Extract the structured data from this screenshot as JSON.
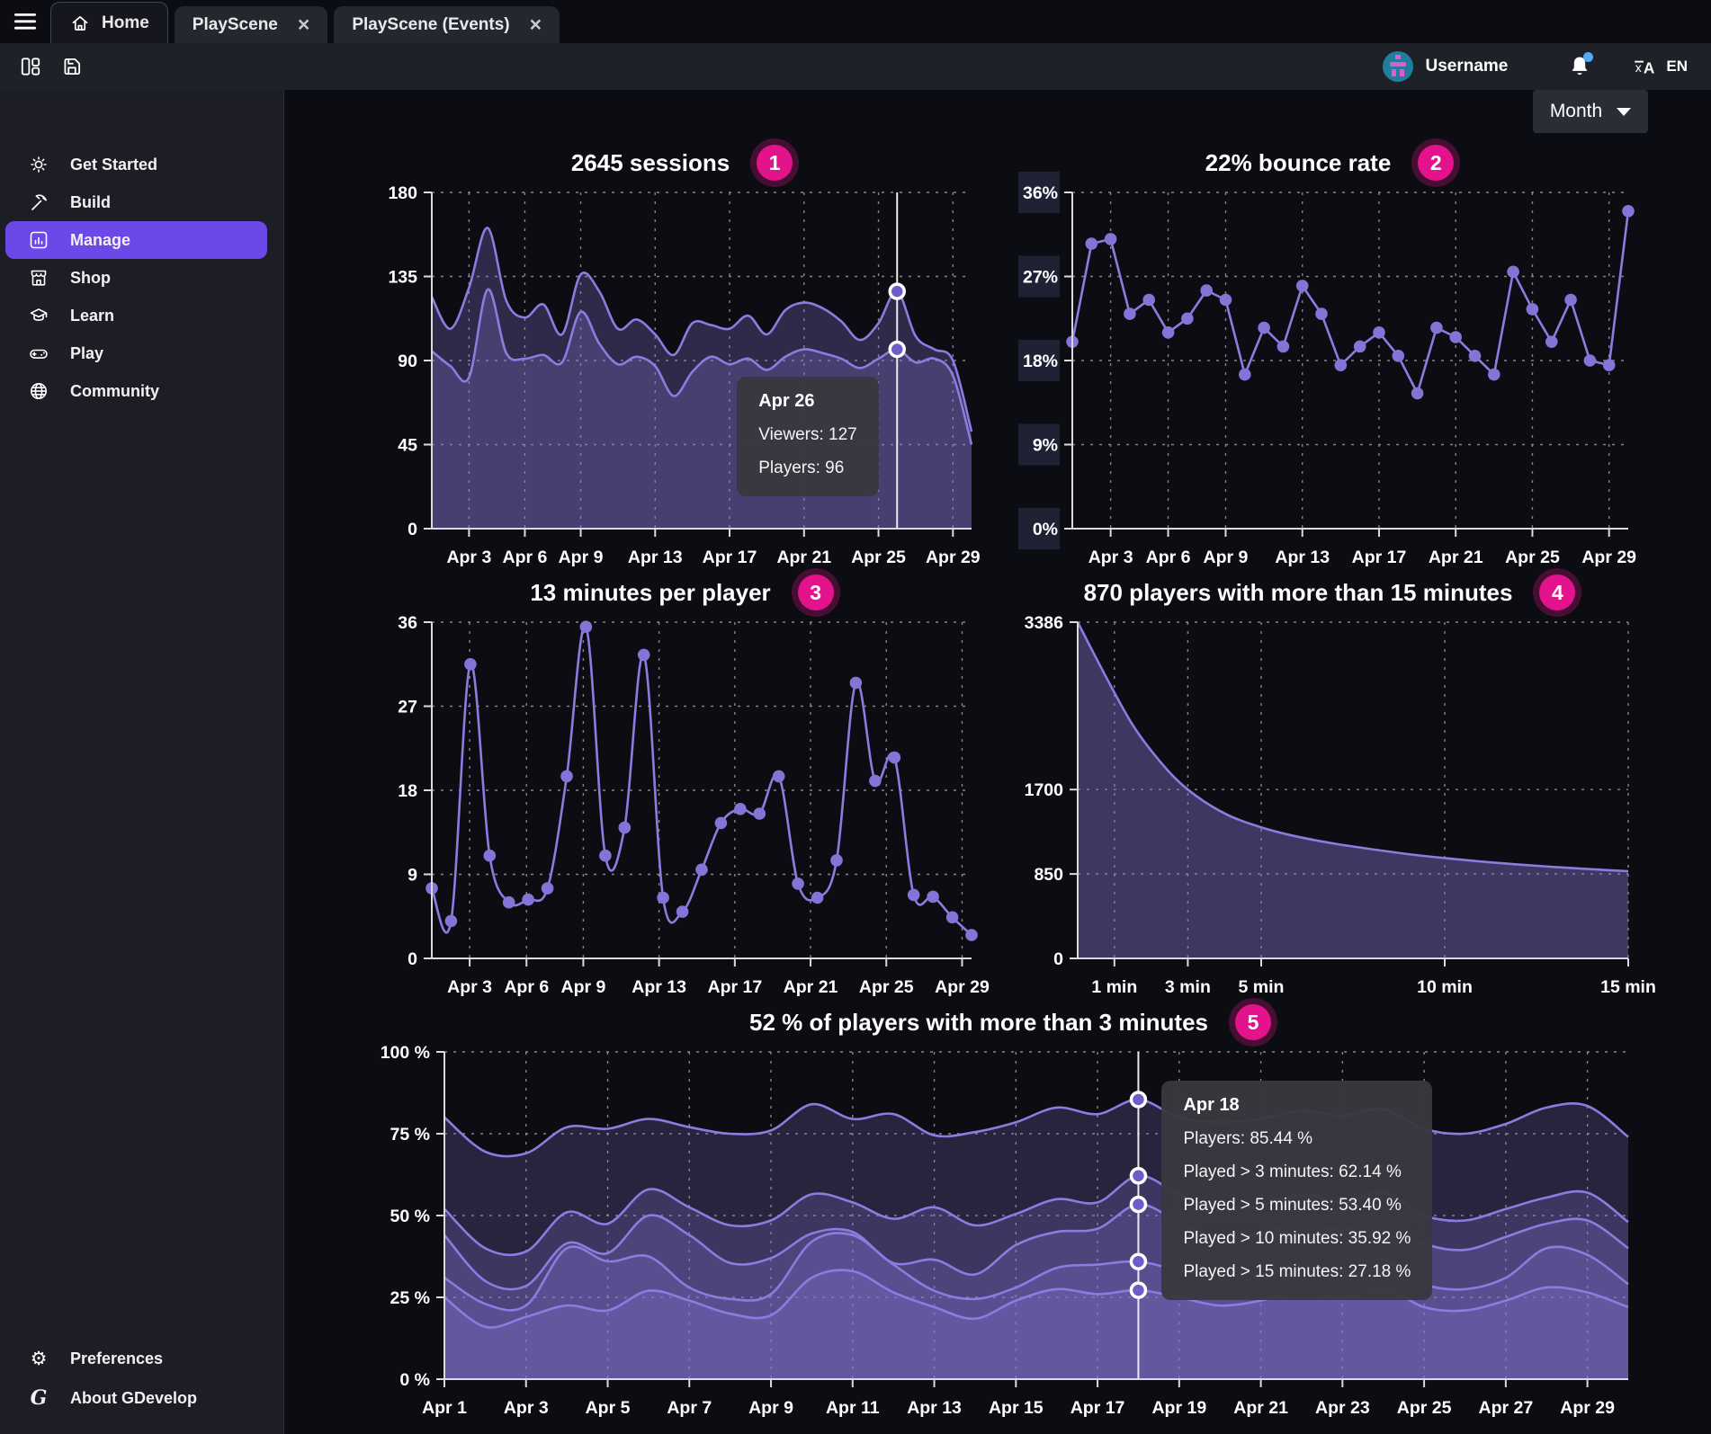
{
  "header": {
    "tabs": [
      {
        "label": "Home",
        "active": true,
        "closable": false
      },
      {
        "label": "PlayScene",
        "active": false,
        "closable": true
      },
      {
        "label": "PlayScene (Events)",
        "active": false,
        "closable": true
      }
    ],
    "username": "Username",
    "language": "EN"
  },
  "filters": {
    "period": "Month"
  },
  "sidebar": {
    "items": [
      {
        "label": "Get Started",
        "icon": "sun-icon"
      },
      {
        "label": "Build",
        "icon": "pickaxe-icon"
      },
      {
        "label": "Manage",
        "icon": "chart-icon",
        "active": true
      },
      {
        "label": "Shop",
        "icon": "storefront-icon"
      },
      {
        "label": "Learn",
        "icon": "graduation-cap-icon"
      },
      {
        "label": "Play",
        "icon": "gamepad-icon"
      },
      {
        "label": "Community",
        "icon": "globe-icon"
      }
    ],
    "footer": [
      {
        "label": "Preferences",
        "icon": "gear-icon"
      },
      {
        "label": "About GDevelop",
        "icon": "gdevelop-logo"
      }
    ]
  },
  "colors": {
    "accent": "#6d48e8",
    "line": "#8b7ce0",
    "badge": "#e3138b",
    "tooltip_bg": "#38393f",
    "notification_dot": "#57aaf2"
  },
  "chart_data": [
    {
      "key": "sessions",
      "type": "area",
      "title": "2645 sessions",
      "badge": "1",
      "ml": 58,
      "smooth": true,
      "fill_opacity": 0.28,
      "dots": false,
      "y_max": 180,
      "y_ticks": [
        {
          "v": 0,
          "label": "0"
        },
        {
          "v": 45,
          "label": "45"
        },
        {
          "v": 90,
          "label": "90"
        },
        {
          "v": 135,
          "label": "135"
        },
        {
          "v": 180,
          "label": "180"
        }
      ],
      "x_domain": [
        1,
        30
      ],
      "x_ticks": [
        {
          "v": 3,
          "label": "Apr 3"
        },
        {
          "v": 6,
          "label": "Apr 6"
        },
        {
          "v": 9,
          "label": "Apr 9"
        },
        {
          "v": 13,
          "label": "Apr 13"
        },
        {
          "v": 17,
          "label": "Apr 17"
        },
        {
          "v": 21,
          "label": "Apr 21"
        },
        {
          "v": 25,
          "label": "Apr 25"
        },
        {
          "v": 29,
          "label": "Apr 29"
        }
      ],
      "series": [
        {
          "name": "Viewers",
          "values": [
            124,
            107,
            129,
            161,
            122,
            113,
            120,
            104,
            136,
            127,
            107,
            112,
            104,
            93,
            110,
            109,
            107,
            114,
            104,
            117,
            121,
            118,
            111,
            101,
            110,
            127,
            103,
            96,
            90,
            52
          ]
        },
        {
          "name": "Players",
          "values": [
            95,
            87,
            81,
            128,
            94,
            91,
            93,
            89,
            116,
            99,
            88,
            92,
            87,
            71,
            84,
            92,
            88,
            91,
            85,
            92,
            96,
            94,
            91,
            86,
            91,
            96,
            89,
            91,
            82,
            45
          ]
        }
      ],
      "hover": {
        "x": 26,
        "dots": [
          127,
          96
        ]
      },
      "tooltip": {
        "title": "Apr 26",
        "lines": [
          "Viewers: 127",
          "Players: 96"
        ],
        "anchor": "left",
        "top": 0.5
      }
    },
    {
      "key": "bounce_rate",
      "type": "line",
      "title": "22% bounce rate",
      "badge": "2",
      "ml": 60,
      "smooth": false,
      "fill_opacity": 0,
      "dots": true,
      "ghost": true,
      "y_max": 36,
      "y_ticks": [
        {
          "v": 0,
          "label": "0%"
        },
        {
          "v": 9,
          "label": "9%"
        },
        {
          "v": 18,
          "label": "18%"
        },
        {
          "v": 27,
          "label": "27%"
        },
        {
          "v": 36,
          "label": "36%"
        }
      ],
      "x_domain": [
        1,
        30
      ],
      "x_ticks": [
        {
          "v": 3,
          "label": "Apr 3"
        },
        {
          "v": 6,
          "label": "Apr 6"
        },
        {
          "v": 9,
          "label": "Apr 9"
        },
        {
          "v": 13,
          "label": "Apr 13"
        },
        {
          "v": 17,
          "label": "Apr 17"
        },
        {
          "v": 21,
          "label": "Apr 21"
        },
        {
          "v": 25,
          "label": "Apr 25"
        },
        {
          "v": 29,
          "label": "Apr 29"
        }
      ],
      "series": [
        {
          "name": "Bounce rate %",
          "values": [
            20,
            30.5,
            31,
            23,
            24.5,
            21,
            22.5,
            25.5,
            24.5,
            16.5,
            21.5,
            19.5,
            26,
            23,
            17.5,
            19.5,
            21,
            18.5,
            14.5,
            21.5,
            20.5,
            18.5,
            16.5,
            27.5,
            23.5,
            20,
            24.5,
            18,
            17.5,
            34
          ]
        }
      ]
    },
    {
      "key": "minutes_per_player",
      "type": "line",
      "title": "13 minutes per player",
      "badge": "3",
      "ml": 58,
      "smooth": true,
      "fill_opacity": 0,
      "dots": true,
      "y_max": 36,
      "y_ticks": [
        {
          "v": 0,
          "label": "0"
        },
        {
          "v": 9,
          "label": "9"
        },
        {
          "v": 18,
          "label": "18"
        },
        {
          "v": 27,
          "label": "27"
        },
        {
          "v": 36,
          "label": "36"
        }
      ],
      "x_domain": [
        1,
        29.5
      ],
      "x_ticks": [
        {
          "v": 3,
          "label": "Apr 3"
        },
        {
          "v": 6,
          "label": "Apr 6"
        },
        {
          "v": 9,
          "label": "Apr 9"
        },
        {
          "v": 13,
          "label": "Apr 13"
        },
        {
          "v": 17,
          "label": "Apr 17"
        },
        {
          "v": 21,
          "label": "Apr 21"
        },
        {
          "v": 25,
          "label": "Apr 25"
        },
        {
          "v": 29,
          "label": "Apr 29"
        }
      ],
      "series": [
        {
          "name": "Minutes per player",
          "values": [
            7.5,
            4,
            31.5,
            11,
            6,
            6.3,
            7.5,
            19.5,
            35.5,
            11,
            14,
            32.5,
            6.5,
            5,
            9.5,
            14.5,
            16,
            15.5,
            19.5,
            8,
            6.5,
            10.5,
            29.5,
            19,
            21.5,
            6.8,
            6.6,
            4.4,
            2.5
          ]
        }
      ]
    },
    {
      "key": "retention_minutes",
      "type": "area",
      "title": "870 players with more than 15 minutes",
      "badge": "4",
      "ml": 66,
      "smooth": true,
      "fill_opacity": 0.4,
      "dots": false,
      "y_max": 3386,
      "y_ticks": [
        {
          "v": 0,
          "label": "0"
        },
        {
          "v": 850,
          "label": "850"
        },
        {
          "v": 1700,
          "label": "1700"
        },
        {
          "v": 3386,
          "label": "3386"
        }
      ],
      "x_domain": [
        0,
        15
      ],
      "x_ticks": [
        {
          "v": 1,
          "label": "1 min"
        },
        {
          "v": 3,
          "label": "3 min"
        },
        {
          "v": 5,
          "label": "5 min"
        },
        {
          "v": 10,
          "label": "10 min"
        },
        {
          "v": 15,
          "label": "15 min"
        }
      ],
      "series": [
        {
          "name": "Players still playing",
          "x": [
            0,
            0.75,
            1.5,
            2.25,
            3,
            4,
            5,
            6,
            7,
            8,
            9,
            10,
            11,
            12,
            13,
            14,
            15
          ],
          "values": [
            3386,
            2850,
            2350,
            1980,
            1700,
            1460,
            1320,
            1225,
            1155,
            1100,
            1050,
            1010,
            975,
            945,
            920,
            898,
            878
          ]
        }
      ]
    },
    {
      "key": "players_over_3_minutes",
      "type": "area",
      "title": "52 % of players with more than 3 minutes",
      "badge": "5",
      "ml": 72,
      "smooth": true,
      "fill_opacity": 0.22,
      "dots": false,
      "y_max": 100,
      "y_ticks": [
        {
          "v": 0,
          "label": "0 %"
        },
        {
          "v": 25,
          "label": "25 %"
        },
        {
          "v": 50,
          "label": "50 %"
        },
        {
          "v": 75,
          "label": "75 %"
        },
        {
          "v": 100,
          "label": "100 %"
        }
      ],
      "x_domain": [
        1,
        30
      ],
      "x_ticks": [
        {
          "v": 1,
          "label": "Apr 1"
        },
        {
          "v": 3,
          "label": "Apr 3"
        },
        {
          "v": 5,
          "label": "Apr 5"
        },
        {
          "v": 7,
          "label": "Apr 7"
        },
        {
          "v": 9,
          "label": "Apr 9"
        },
        {
          "v": 11,
          "label": "Apr 11"
        },
        {
          "v": 13,
          "label": "Apr 13"
        },
        {
          "v": 15,
          "label": "Apr 15"
        },
        {
          "v": 17,
          "label": "Apr 17"
        },
        {
          "v": 19,
          "label": "Apr 19"
        },
        {
          "v": 21,
          "label": "Apr 21"
        },
        {
          "v": 23,
          "label": "Apr 23"
        },
        {
          "v": 25,
          "label": "Apr 25"
        },
        {
          "v": 27,
          "label": "Apr 27"
        },
        {
          "v": 29,
          "label": "Apr 29"
        }
      ],
      "series": [
        {
          "name": "Players",
          "values": [
            80,
            69.5,
            69,
            77,
            76.5,
            79.5,
            77,
            75,
            76,
            84,
            79.5,
            81,
            74.5,
            75.5,
            78.5,
            83,
            81,
            85.44,
            80,
            78.5,
            79.5,
            82,
            80.5,
            82.5,
            76.5,
            75,
            78,
            83,
            83.5,
            74
          ]
        },
        {
          "name": "Played > 3 minutes",
          "values": [
            52,
            40,
            39,
            51,
            47.5,
            58,
            52.5,
            47,
            48.5,
            56.5,
            54,
            49,
            52.5,
            47,
            50.5,
            55,
            54,
            62.14,
            56.5,
            52,
            53,
            56.5,
            54,
            57,
            50,
            48.5,
            52,
            55.5,
            57,
            48
          ]
        },
        {
          "name": "Played > 5 minutes",
          "values": [
            44,
            30,
            28.5,
            41.5,
            38.5,
            50,
            44,
            35.5,
            37,
            44.5,
            45,
            35.5,
            36.5,
            32,
            41,
            45,
            46,
            53.4,
            48,
            43,
            44.5,
            48,
            45.5,
            49,
            41.5,
            39.5,
            43.5,
            47.5,
            48.5,
            40
          ]
        },
        {
          "name": "Played > 10 minutes",
          "values": [
            31,
            23,
            22.5,
            40,
            36,
            37.5,
            28,
            24.5,
            26,
            42,
            44,
            35,
            27,
            24.5,
            28,
            34,
            35,
            35.92,
            33,
            29.5,
            31,
            35,
            33,
            36.5,
            29,
            27.5,
            31,
            40,
            38,
            29
          ]
        },
        {
          "name": "Played > 15 minutes",
          "values": [
            25,
            16,
            19,
            22.5,
            21,
            27,
            24,
            20,
            19.5,
            31,
            33,
            26.5,
            22,
            18.5,
            24,
            27.5,
            26,
            27.18,
            25,
            22.5,
            24,
            27,
            25,
            28,
            22,
            21,
            24,
            28,
            26.5,
            22
          ]
        }
      ],
      "hover": {
        "x": 18,
        "dots": [
          85.44,
          62.14,
          53.4,
          35.92,
          27.18
        ]
      },
      "tooltip": {
        "title": "Apr 18",
        "lines": [
          "Players: 85.44 %",
          "Played > 3 minutes: 62.14 %",
          "Played > 5 minutes: 53.40 %",
          "Played > 10 minutes: 35.92 %",
          "Played > 15 minutes: 27.18 %"
        ],
        "anchor": "right",
        "top": 0.1
      }
    }
  ]
}
